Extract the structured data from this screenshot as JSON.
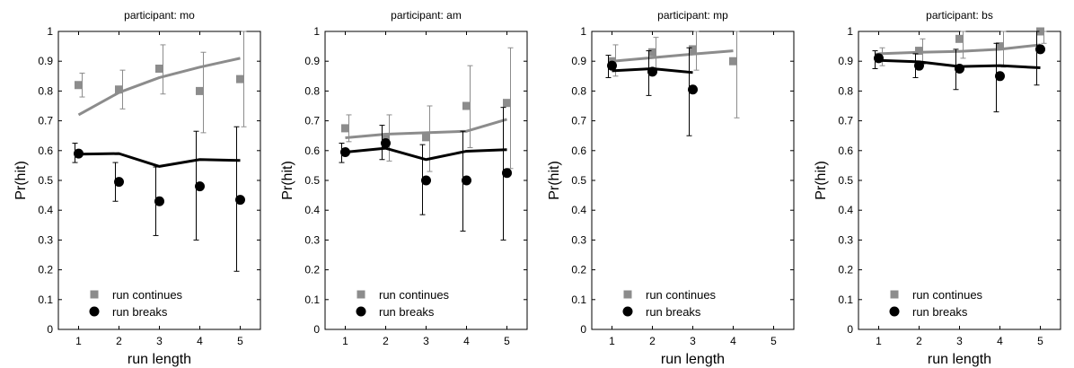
{
  "figure": {
    "colors": {
      "continues": "#8c8c8c",
      "breaks": "#000000"
    }
  },
  "chart_data": [
    {
      "type": "line",
      "title": "participant: mo",
      "xlabel": "run length",
      "ylabel": "Pr(hit)",
      "xlim": [
        0.5,
        5.5
      ],
      "ylim": [
        0,
        1
      ],
      "xticks": [
        "1",
        "2",
        "3",
        "4",
        "5"
      ],
      "yticks": [
        "0",
        "0.1",
        "0.2",
        "0.3",
        "0.4",
        "0.5",
        "0.6",
        "0.7",
        "0.8",
        "0.9",
        "1"
      ],
      "grid": false,
      "legend": {
        "position": "bottom",
        "entries": [
          "run continues",
          "run breaks"
        ]
      },
      "series": [
        {
          "name": "run continues",
          "marker": "square",
          "color": "#8c8c8c",
          "x": [
            1,
            2,
            3,
            4,
            5
          ],
          "y": [
            0.82,
            0.805,
            0.875,
            0.8,
            0.84
          ],
          "err_low": [
            0.78,
            0.74,
            0.79,
            0.66,
            0.68
          ],
          "err_high": [
            0.86,
            0.87,
            0.955,
            0.93,
            1.0
          ],
          "fit_x": [
            1,
            2,
            3,
            4,
            5
          ],
          "fit_y": [
            0.72,
            0.795,
            0.845,
            0.88,
            0.91
          ]
        },
        {
          "name": "run breaks",
          "marker": "circle",
          "color": "#000000",
          "x": [
            1,
            2,
            3,
            4,
            5
          ],
          "y": [
            0.59,
            0.495,
            0.43,
            0.48,
            0.435
          ],
          "err_low": [
            0.56,
            0.43,
            0.315,
            0.3,
            0.195
          ],
          "err_high": [
            0.625,
            0.56,
            0.545,
            0.665,
            0.68
          ],
          "fit_x": [
            1,
            2,
            3,
            4,
            5
          ],
          "fit_y": [
            0.588,
            0.59,
            0.547,
            0.57,
            0.567
          ]
        }
      ]
    },
    {
      "type": "line",
      "title": "participant: am",
      "xlabel": "",
      "ylabel": "Pr(hit)",
      "xlim": [
        0.5,
        5.5
      ],
      "ylim": [
        0,
        1
      ],
      "xticks": [
        "1",
        "2",
        "3",
        "4",
        "5"
      ],
      "yticks": [
        "0",
        "0.1",
        "0.2",
        "0.3",
        "0.4",
        "0.5",
        "0.6",
        "0.7",
        "0.8",
        "0.9",
        "1"
      ],
      "grid": false,
      "legend": {
        "position": "bottom",
        "entries": [
          "run continues",
          "run breaks"
        ]
      },
      "series": [
        {
          "name": "run continues",
          "marker": "square",
          "color": "#8c8c8c",
          "x": [
            1,
            2,
            3,
            4,
            5
          ],
          "y": [
            0.675,
            0.645,
            0.645,
            0.75,
            0.76
          ],
          "err_low": [
            0.63,
            0.565,
            0.53,
            0.61,
            0.54
          ],
          "err_high": [
            0.72,
            0.72,
            0.75,
            0.885,
            0.945
          ],
          "fit_x": [
            1,
            2,
            3,
            4,
            5
          ],
          "fit_y": [
            0.643,
            0.655,
            0.66,
            0.665,
            0.705
          ]
        },
        {
          "name": "run breaks",
          "marker": "circle",
          "color": "#000000",
          "x": [
            1,
            2,
            3,
            4,
            5
          ],
          "y": [
            0.595,
            0.625,
            0.5,
            0.5,
            0.525
          ],
          "err_low": [
            0.56,
            0.57,
            0.385,
            0.33,
            0.3
          ],
          "err_high": [
            0.625,
            0.685,
            0.62,
            0.665,
            0.745
          ],
          "fit_x": [
            1,
            2,
            3,
            4,
            5
          ],
          "fit_y": [
            0.595,
            0.608,
            0.57,
            0.598,
            0.603
          ]
        }
      ]
    },
    {
      "type": "line",
      "title": "participant: mp",
      "xlabel": "run length",
      "ylabel": "Pr(hit)",
      "xlim": [
        0.5,
        5.5
      ],
      "ylim": [
        0,
        1
      ],
      "xticks": [
        "1",
        "2",
        "3",
        "4",
        "5"
      ],
      "yticks": [
        "0",
        "0.1",
        "0.2",
        "0.3",
        "0.4",
        "0.5",
        "0.6",
        "0.7",
        "0.8",
        "0.9",
        "1"
      ],
      "grid": false,
      "legend": {
        "position": "bottom",
        "entries": [
          "run continues",
          "run breaks"
        ]
      },
      "series": [
        {
          "name": "run continues",
          "marker": "square",
          "color": "#8c8c8c",
          "x": [
            1,
            2,
            3,
            4
          ],
          "y": [
            0.9,
            0.93,
            0.94,
            0.9
          ],
          "err_low": [
            0.85,
            0.87,
            0.87,
            0.71
          ],
          "err_high": [
            0.955,
            0.98,
            1.0,
            1.0
          ],
          "fit_x": [
            1,
            2,
            3,
            4
          ],
          "fit_y": [
            0.9,
            0.912,
            0.924,
            0.935
          ]
        },
        {
          "name": "run breaks",
          "marker": "circle",
          "color": "#000000",
          "x": [
            1,
            2,
            3
          ],
          "y": [
            0.885,
            0.865,
            0.805
          ],
          "err_low": [
            0.845,
            0.785,
            0.65
          ],
          "err_high": [
            0.92,
            0.935,
            0.945
          ],
          "fit_x": [
            1,
            2,
            3
          ],
          "fit_y": [
            0.868,
            0.875,
            0.862
          ]
        }
      ]
    },
    {
      "type": "line",
      "title": "participant: bs",
      "xlabel": "run length",
      "ylabel": "Pr(hit)",
      "xlim": [
        0.5,
        5.5
      ],
      "ylim": [
        0,
        1
      ],
      "xticks": [
        "1",
        "2",
        "3",
        "4",
        "5"
      ],
      "yticks": [
        "0",
        "0.1",
        "0.2",
        "0.3",
        "0.4",
        "0.5",
        "0.6",
        "0.7",
        "0.8",
        "0.9",
        "1"
      ],
      "grid": false,
      "legend": {
        "position": "bottom",
        "entries": [
          "run continues",
          "run breaks"
        ]
      },
      "series": [
        {
          "name": "run continues",
          "marker": "square",
          "color": "#8c8c8c",
          "x": [
            1,
            2,
            3,
            4,
            5
          ],
          "y": [
            0.915,
            0.935,
            0.975,
            0.95,
            1.0
          ],
          "err_low": [
            0.885,
            0.89,
            0.91,
            0.88,
            0.96
          ],
          "err_high": [
            0.945,
            0.975,
            1.0,
            1.0,
            1.0
          ],
          "fit_x": [
            1,
            2,
            3,
            4,
            5
          ],
          "fit_y": [
            0.925,
            0.93,
            0.933,
            0.94,
            0.955
          ]
        },
        {
          "name": "run breaks",
          "marker": "circle",
          "color": "#000000",
          "x": [
            1,
            2,
            3,
            4,
            5
          ],
          "y": [
            0.91,
            0.885,
            0.875,
            0.85,
            0.94
          ],
          "err_low": [
            0.875,
            0.845,
            0.805,
            0.73,
            0.82
          ],
          "err_high": [
            0.935,
            0.925,
            0.94,
            0.96,
            1.0
          ],
          "fit_x": [
            1,
            2,
            3,
            4,
            5
          ],
          "fit_y": [
            0.903,
            0.898,
            0.882,
            0.885,
            0.878
          ]
        }
      ]
    }
  ]
}
